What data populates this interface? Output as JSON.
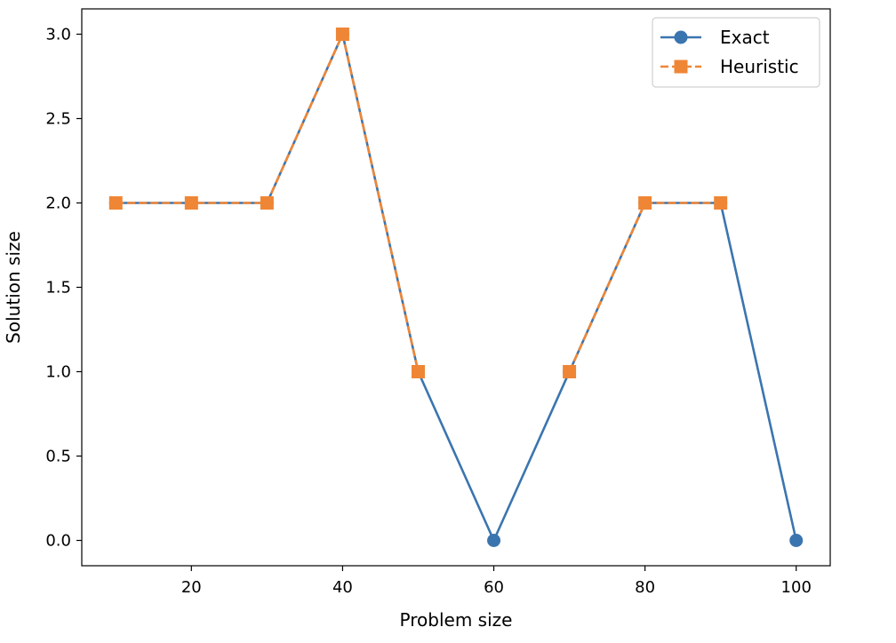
{
  "chart_data": {
    "type": "line",
    "title": "",
    "xlabel": "Problem size",
    "ylabel": "Solution size",
    "xlim": [
      5.5,
      104.5
    ],
    "ylim": [
      -0.15,
      3.15
    ],
    "x_ticks": [
      20,
      40,
      60,
      80,
      100
    ],
    "x_tick_labels": [
      "20",
      "40",
      "60",
      "80",
      "100"
    ],
    "y_ticks": [
      0.0,
      0.5,
      1.0,
      1.5,
      2.0,
      2.5,
      3.0
    ],
    "y_tick_labels": [
      "0.0",
      "0.5",
      "1.0",
      "1.5",
      "2.0",
      "2.5",
      "3.0"
    ],
    "grid": false,
    "legend_position": "top-right",
    "series": [
      {
        "name": "Exact",
        "color": "#3b75af",
        "marker": "circle",
        "line_style": "solid",
        "x": [
          10,
          20,
          30,
          40,
          50,
          60,
          70,
          80,
          90,
          100
        ],
        "y": [
          2,
          2,
          2,
          3,
          1,
          0,
          1,
          2,
          2,
          0
        ]
      },
      {
        "name": "Heuristic",
        "color": "#ef8636",
        "marker": "square",
        "line_style": "dashed",
        "x": [
          10,
          20,
          30,
          40,
          50,
          70,
          80,
          90
        ],
        "y": [
          2,
          2,
          2,
          3,
          1,
          1,
          2,
          2
        ],
        "segments": [
          [
            0,
            4
          ],
          [
            5,
            7
          ]
        ]
      }
    ]
  }
}
